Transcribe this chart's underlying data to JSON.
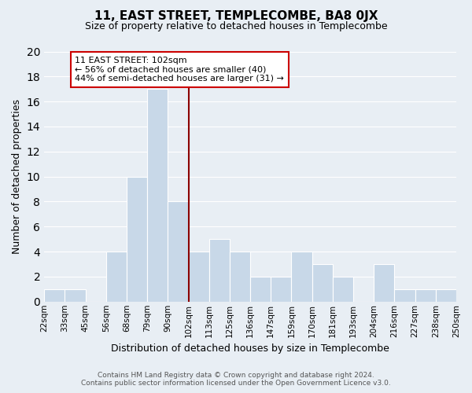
{
  "title": "11, EAST STREET, TEMPLECOMBE, BA8 0JX",
  "subtitle": "Size of property relative to detached houses in Templecombe",
  "xlabel": "Distribution of detached houses by size in Templecombe",
  "ylabel": "Number of detached properties",
  "tick_labels": [
    "22sqm",
    "33sqm",
    "45sqm",
    "56sqm",
    "68sqm",
    "79sqm",
    "90sqm",
    "102sqm",
    "113sqm",
    "125sqm",
    "136sqm",
    "147sqm",
    "159sqm",
    "170sqm",
    "181sqm",
    "193sqm",
    "204sqm",
    "216sqm",
    "227sqm",
    "238sqm",
    "250sqm"
  ],
  "values": [
    1,
    1,
    0,
    4,
    10,
    17,
    8,
    4,
    5,
    4,
    2,
    2,
    4,
    3,
    2,
    0,
    3,
    1,
    1,
    1
  ],
  "bar_color": "#c8d8e8",
  "bar_edge_color": "#ffffff",
  "property_line_index": 7,
  "property_line_color": "#8b0000",
  "annotation_title": "11 EAST STREET: 102sqm",
  "annotation_line1": "← 56% of detached houses are smaller (40)",
  "annotation_line2": "44% of semi-detached houses are larger (31) →",
  "annotation_box_color": "#ffffff",
  "annotation_box_edge_color": "#cc0000",
  "ylim": [
    0,
    20
  ],
  "yticks": [
    0,
    2,
    4,
    6,
    8,
    10,
    12,
    14,
    16,
    18,
    20
  ],
  "grid_color": "#ffffff",
  "bg_color": "#e8eef4",
  "footer1": "Contains HM Land Registry data © Crown copyright and database right 2024.",
  "footer2": "Contains public sector information licensed under the Open Government Licence v3.0."
}
